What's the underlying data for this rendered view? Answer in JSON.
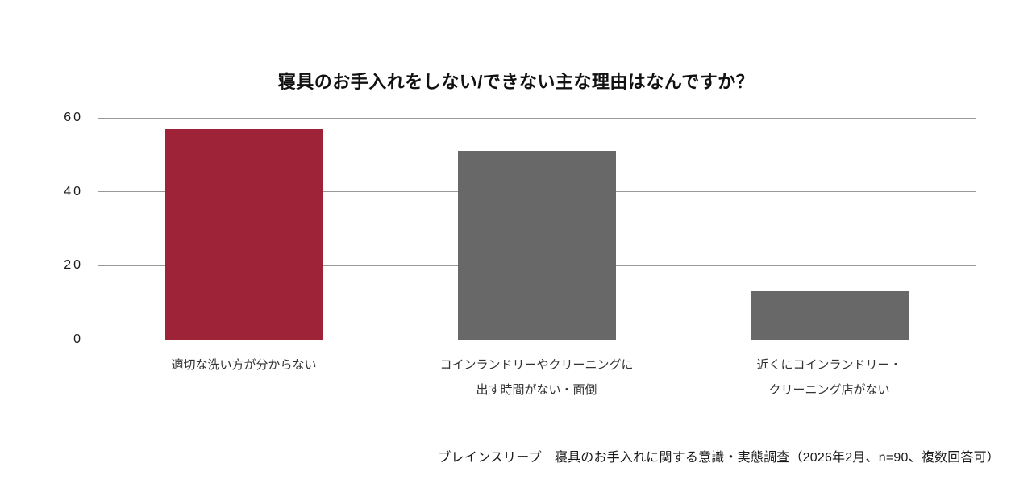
{
  "colors": {
    "highlight_bar": "#9E2339",
    "default_bar": "#686868",
    "gridline": "#999999",
    "title_text": "#111111",
    "axis_text": "#1A1A1A",
    "category_text": "#333333"
  },
  "chart_data": {
    "type": "bar",
    "title": "寝具のお手入れをしない/できない主な理由はなんですか？",
    "categories": [
      "適切な洗い方が分からない",
      "コインランドリーやクリーニングに出す時間がない・面倒",
      "近くにコインランドリー・クリーニング店がない"
    ],
    "category_lines": [
      [
        "適切な洗い方が分からない"
      ],
      [
        "コインランドリーやクリーニングに",
        "出す時間がない・面倒"
      ],
      [
        "近くにコインランドリー・",
        "クリーニング店がない"
      ]
    ],
    "values": [
      57,
      51,
      13
    ],
    "bar_colors": [
      "#9E2339",
      "#686868",
      "#686868"
    ],
    "xlabel": "",
    "ylabel": "",
    "ylim": [
      0,
      60
    ],
    "yticks": [
      0,
      20,
      40,
      60
    ],
    "grid": true,
    "legend": false,
    "source_note": "ブレインスリープ　寝具のお手入れに関する意識・実態調査（2026年2月、n=90、複数回答可）"
  }
}
